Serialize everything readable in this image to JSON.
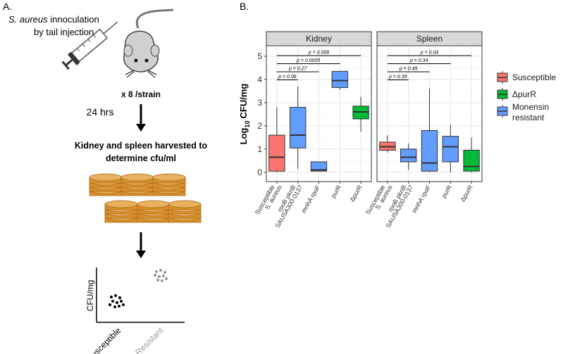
{
  "panel_a": {
    "label": "A.",
    "injection": {
      "organism": "S. aureus",
      "line1": "innoculation",
      "line2": "by tail injection"
    },
    "replicates": "x 8 /strain",
    "time": "24 hrs",
    "harvest": [
      "Kidney and spleen harvested to",
      "determine cfu/ml"
    ],
    "schematic_plot": {
      "y_label": "CFU/mg",
      "x_labels": [
        "Susceptible",
        "Resistant"
      ]
    }
  },
  "chart_data": {
    "type": "box",
    "label": "B.",
    "y_label": {
      "text": "Log",
      "subscript": "10",
      "suffix": "CFU/mg"
    },
    "ylim": [
      -0.4,
      5.45
    ],
    "yticks": [
      0,
      1,
      2,
      3,
      4,
      5
    ],
    "grid": true,
    "series": [
      {
        "name": "Susceptible",
        "color": "#f8766d"
      },
      {
        "name": "ΔpurR",
        "color": "#00ba38"
      },
      {
        "name": "Monensin resistant",
        "color": "#619cff"
      }
    ],
    "facets": [
      {
        "name": "Kidney",
        "categories": [
          [
            "Susceptible",
            "S. aureus"
          ],
          [
            "rpoB pknB",
            "SAUSA300-0137"
          ],
          [
            "mnhA rpoF"
          ],
          [
            "purR"
          ],
          [
            "ΔpurR"
          ]
        ],
        "boxes": [
          {
            "series": 0,
            "min": 0,
            "q1": 0.05,
            "median": 0.65,
            "q3": 1.6,
            "max": 2.8
          },
          {
            "series": 2,
            "min": 0.15,
            "q1": 1.05,
            "median": 1.6,
            "q3": 2.8,
            "max": 3.7
          },
          {
            "series": 2,
            "min": 0.05,
            "q1": 0.05,
            "median": 0.1,
            "q3": 0.45,
            "max": 0.45
          },
          {
            "series": 2,
            "min": 3.55,
            "q1": 3.65,
            "median": 3.95,
            "q3": 4.35,
            "max": 4.35
          },
          {
            "series": 1,
            "min": 1.75,
            "q1": 2.3,
            "median": 2.6,
            "q3": 2.85,
            "max": 3.25
          }
        ],
        "pvalues": [
          "p = 0.06",
          "p = 0.27",
          "p = 0.0005",
          "p = 0.008"
        ]
      },
      {
        "name": "Spleen",
        "categories": [
          [
            "Susceptible",
            "S. aureus"
          ],
          [
            "rpoB pknB",
            "SAUSA300-0137"
          ],
          [
            "mnhA rpoF"
          ],
          [
            "purR"
          ],
          [
            "ΔpurR"
          ]
        ],
        "boxes": [
          {
            "series": 0,
            "min": 0.85,
            "q1": 0.95,
            "median": 1.1,
            "q3": 1.3,
            "max": 1.6
          },
          {
            "series": 2,
            "min": 0.1,
            "q1": 0.45,
            "median": 0.65,
            "q3": 1.0,
            "max": 1.25
          },
          {
            "series": 2,
            "min": 0,
            "q1": 0.05,
            "median": 0.4,
            "q3": 1.8,
            "max": 3.6
          },
          {
            "series": 2,
            "min": 0,
            "q1": 0.45,
            "median": 1.1,
            "q3": 1.55,
            "max": 2.05
          },
          {
            "series": 1,
            "min": 0,
            "q1": 0.05,
            "median": 0.25,
            "q3": 0.95,
            "max": 1.5
          }
        ],
        "pvalues": [
          "p = 0.39",
          "p = 0.49",
          "p = 0.34",
          "p = 0.04"
        ]
      }
    ]
  }
}
